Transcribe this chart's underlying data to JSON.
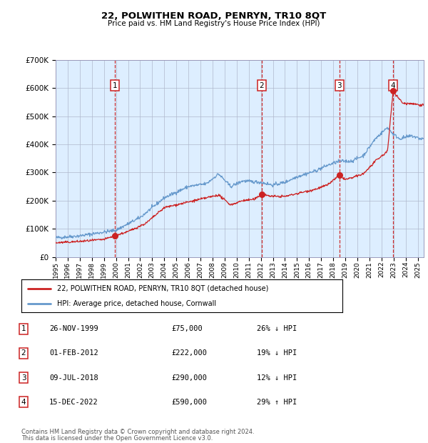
{
  "title": "22, POLWITHEN ROAD, PENRYN, TR10 8QT",
  "subtitle": "Price paid vs. HM Land Registry's House Price Index (HPI)",
  "legend_line1": "22, POLWITHEN ROAD, PENRYN, TR10 8QT (detached house)",
  "legend_line2": "HPI: Average price, detached house, Cornwall",
  "footer1": "Contains HM Land Registry data © Crown copyright and database right 2024.",
  "footer2": "This data is licensed under the Open Government Licence v3.0.",
  "transactions": [
    {
      "num": 1,
      "date": "26-NOV-1999",
      "price": 75000,
      "pct": "26%",
      "dir": "↓",
      "year": 1999.9
    },
    {
      "num": 2,
      "date": "01-FEB-2012",
      "price": 222000,
      "pct": "19%",
      "dir": "↓",
      "year": 2012.08
    },
    {
      "num": 3,
      "date": "09-JUL-2018",
      "price": 290000,
      "pct": "12%",
      "dir": "↓",
      "year": 2018.52
    },
    {
      "num": 4,
      "date": "15-DEC-2022",
      "price": 590000,
      "pct": "29%",
      "dir": "↑",
      "year": 2022.96
    }
  ],
  "hpi_color": "#6699cc",
  "price_color": "#cc2222",
  "bg_color": "#ddeeff",
  "grid_color": "#b0b8cc",
  "vline_color": "#cc2222",
  "ylim": [
    0,
    700000
  ],
  "xlim_start": 1995.0,
  "xlim_end": 2025.5,
  "hpi_anchors": [
    [
      1995.0,
      68000
    ],
    [
      1997.0,
      75000
    ],
    [
      2000.0,
      95000
    ],
    [
      2002.0,
      140000
    ],
    [
      2004.0,
      210000
    ],
    [
      2006.0,
      250000
    ],
    [
      2007.5,
      260000
    ],
    [
      2008.5,
      295000
    ],
    [
      2009.5,
      250000
    ],
    [
      2010.5,
      270000
    ],
    [
      2012.0,
      265000
    ],
    [
      2013.0,
      255000
    ],
    [
      2014.0,
      265000
    ],
    [
      2015.0,
      285000
    ],
    [
      2016.5,
      305000
    ],
    [
      2017.5,
      325000
    ],
    [
      2018.5,
      340000
    ],
    [
      2019.5,
      340000
    ],
    [
      2020.5,
      360000
    ],
    [
      2021.5,
      420000
    ],
    [
      2022.5,
      460000
    ],
    [
      2023.0,
      435000
    ],
    [
      2023.5,
      420000
    ],
    [
      2024.5,
      430000
    ],
    [
      2025.2,
      420000
    ]
  ],
  "price_anchors": [
    [
      1995.0,
      50000
    ],
    [
      1997.0,
      55000
    ],
    [
      1999.0,
      62000
    ],
    [
      1999.9,
      75000
    ],
    [
      2001.0,
      90000
    ],
    [
      2002.5,
      120000
    ],
    [
      2004.0,
      175000
    ],
    [
      2006.0,
      195000
    ],
    [
      2007.5,
      210000
    ],
    [
      2008.5,
      220000
    ],
    [
      2009.5,
      185000
    ],
    [
      2010.5,
      200000
    ],
    [
      2011.5,
      205000
    ],
    [
      2012.08,
      222000
    ],
    [
      2013.0,
      215000
    ],
    [
      2014.0,
      215000
    ],
    [
      2015.0,
      225000
    ],
    [
      2016.5,
      240000
    ],
    [
      2017.5,
      255000
    ],
    [
      2018.52,
      290000
    ],
    [
      2019.0,
      275000
    ],
    [
      2019.5,
      280000
    ],
    [
      2020.5,
      295000
    ],
    [
      2021.5,
      340000
    ],
    [
      2022.5,
      375000
    ],
    [
      2022.96,
      590000
    ],
    [
      2023.3,
      570000
    ],
    [
      2023.8,
      545000
    ],
    [
      2024.5,
      545000
    ],
    [
      2025.2,
      540000
    ]
  ]
}
